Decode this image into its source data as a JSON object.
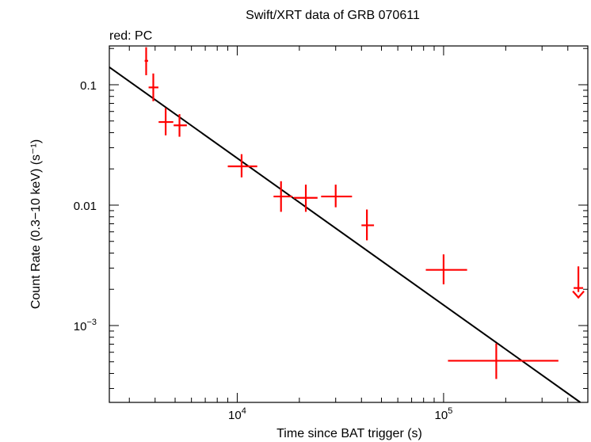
{
  "chart_data": {
    "type": "scatter",
    "title": "Swift/XRT data of GRB 070611",
    "subtitle": "red: PC",
    "xlabel": "Time since BAT trigger (s)",
    "ylabel": "Count Rate (0.3−10 keV) (s⁻¹)",
    "xscale": "log",
    "yscale": "log",
    "xlim": [
      2400,
      500000
    ],
    "ylim": [
      0.00023,
      0.21
    ],
    "x_ticks": [
      {
        "value": 10000,
        "base": "10",
        "exp": "4"
      },
      {
        "value": 100000,
        "base": "10",
        "exp": "5"
      }
    ],
    "y_ticks": [
      {
        "value": 0.1,
        "label": "0.1"
      },
      {
        "value": 0.01,
        "label": "0.01"
      },
      {
        "value": 0.001,
        "base": "10",
        "exp": "−3"
      }
    ],
    "series": [
      {
        "name": "PC",
        "color": "#ff0000",
        "points": [
          {
            "x": 3620,
            "xlo": 3560,
            "xhi": 3700,
            "y": 0.158,
            "ylo": 0.12,
            "yhi": 0.205
          },
          {
            "x": 3920,
            "xlo": 3720,
            "xhi": 4150,
            "y": 0.095,
            "ylo": 0.073,
            "yhi": 0.124
          },
          {
            "x": 4500,
            "xlo": 4160,
            "xhi": 4900,
            "y": 0.049,
            "ylo": 0.038,
            "yhi": 0.064
          },
          {
            "x": 5250,
            "xlo": 4920,
            "xhi": 5700,
            "y": 0.046,
            "ylo": 0.037,
            "yhi": 0.057
          },
          {
            "x": 10500,
            "xlo": 9000,
            "xhi": 12500,
            "y": 0.021,
            "ylo": 0.017,
            "yhi": 0.0265
          },
          {
            "x": 16300,
            "xlo": 15000,
            "xhi": 18500,
            "y": 0.0118,
            "ylo": 0.0088,
            "yhi": 0.0158
          },
          {
            "x": 21500,
            "xlo": 18800,
            "xhi": 24500,
            "y": 0.0115,
            "ylo": 0.0088,
            "yhi": 0.0148
          },
          {
            "x": 30000,
            "xlo": 25500,
            "xhi": 36000,
            "y": 0.0118,
            "ylo": 0.0096,
            "yhi": 0.0148
          },
          {
            "x": 42500,
            "xlo": 40000,
            "xhi": 46000,
            "y": 0.0068,
            "ylo": 0.0051,
            "yhi": 0.0092
          },
          {
            "x": 100000,
            "xlo": 82000,
            "xhi": 130000,
            "y": 0.0029,
            "ylo": 0.0022,
            "yhi": 0.0039
          },
          {
            "x": 180000,
            "xlo": 105000,
            "xhi": 360000,
            "y": 0.00051,
            "ylo": 0.00036,
            "yhi": 0.00071
          }
        ],
        "upper_limits": [
          {
            "x": 450000,
            "y": 0.0019,
            "yhi": 0.0031
          }
        ]
      }
    ],
    "model": {
      "type": "power-law",
      "color": "#000000",
      "points": [
        {
          "x": 2400,
          "y": 0.14
        },
        {
          "x": 460000,
          "y": 0.00023
        }
      ]
    }
  }
}
